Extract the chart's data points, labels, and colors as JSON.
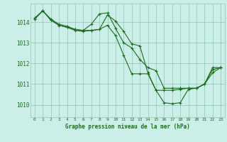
{
  "title": "Graphe pression niveau de la mer (hPa)",
  "background_color": "#cceee8",
  "grid_color": "#99ccbb",
  "line_color": "#1a6e1a",
  "x_ticks": [
    0,
    1,
    2,
    3,
    4,
    5,
    6,
    7,
    8,
    9,
    10,
    11,
    12,
    13,
    14,
    15,
    16,
    17,
    18,
    19,
    20,
    21,
    22,
    23
  ],
  "ylim": [
    1009.4,
    1014.9
  ],
  "yticks": [
    1010,
    1011,
    1012,
    1013,
    1014
  ],
  "lines": [
    [
      1014.15,
      1014.55,
      1014.1,
      1013.85,
      1013.75,
      1013.65,
      1013.6,
      1013.6,
      1013.65,
      1014.35,
      1014.05,
      1013.55,
      1012.95,
      1012.85,
      1011.55,
      1010.7,
      1010.1,
      1010.05,
      1010.1,
      1010.75,
      1010.8,
      1011.0,
      1011.7,
      1011.8
    ],
    [
      1014.15,
      1014.55,
      1014.1,
      1013.85,
      1013.75,
      1013.6,
      1013.55,
      1013.6,
      1013.65,
      1013.85,
      1013.35,
      1012.4,
      1011.5,
      1011.5,
      1011.5,
      1010.7,
      1010.7,
      1010.7,
      1010.75,
      1010.8,
      1010.8,
      1011.0,
      1011.8,
      1011.8
    ],
    [
      1014.2,
      1014.55,
      1014.15,
      1013.9,
      1013.8,
      1013.65,
      1013.6,
      1013.9,
      1014.4,
      1014.45,
      1013.7,
      1013.0,
      1012.75,
      1012.2,
      1011.8,
      1011.65,
      1010.8,
      1010.8,
      1010.8,
      1010.8,
      1010.8,
      1011.0,
      1011.55,
      1011.8
    ]
  ]
}
